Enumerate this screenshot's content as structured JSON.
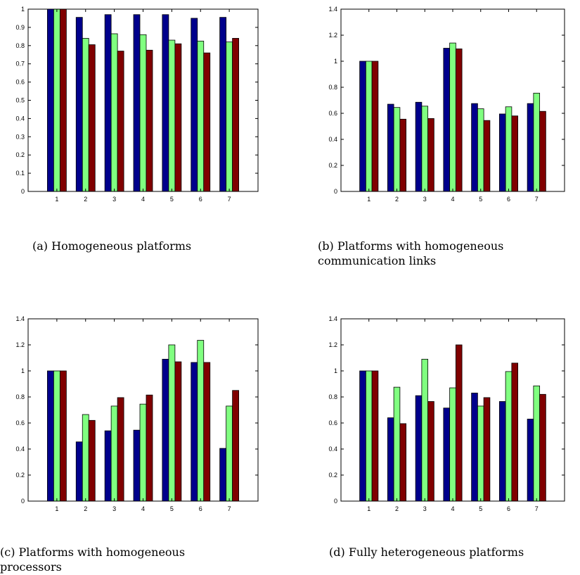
{
  "colors": {
    "series_1": "#00008c",
    "series_2": "#80ff80",
    "series_3": "#800000"
  },
  "chart_data": [
    {
      "type": "bar",
      "caption": "(a) Homogeneous platforms",
      "categories": [
        "1",
        "2",
        "3",
        "4",
        "5",
        "6",
        "7"
      ],
      "ylim": [
        0,
        1
      ],
      "yticks": [
        "0",
        "0.1",
        "0.2",
        "0.3",
        "0.4",
        "0.5",
        "0.6",
        "0.7",
        "0.8",
        "0.9",
        "1"
      ],
      "ytick_values": [
        0,
        0.1,
        0.2,
        0.3,
        0.4,
        0.5,
        0.6,
        0.7,
        0.8,
        0.9,
        1
      ],
      "series": [
        {
          "values": [
            1.0,
            0.955,
            0.97,
            0.97,
            0.97,
            0.95,
            0.955
          ]
        },
        {
          "values": [
            1.0,
            0.84,
            0.865,
            0.86,
            0.83,
            0.825,
            0.82
          ]
        },
        {
          "values": [
            1.0,
            0.805,
            0.77,
            0.775,
            0.81,
            0.76,
            0.84
          ]
        }
      ]
    },
    {
      "type": "bar",
      "caption": "(b) Platforms with homogeneous communication links",
      "categories": [
        "1",
        "2",
        "3",
        "4",
        "5",
        "6",
        "7"
      ],
      "ylim": [
        0,
        1.4
      ],
      "yticks": [
        "0",
        "0.2",
        "0.4",
        "0.6",
        "0.8",
        "1",
        "1.2",
        "1.4"
      ],
      "ytick_values": [
        0,
        0.2,
        0.4,
        0.6,
        0.8,
        1,
        1.2,
        1.4
      ],
      "series": [
        {
          "values": [
            1.0,
            0.67,
            0.685,
            1.1,
            0.675,
            0.595,
            0.675
          ]
        },
        {
          "values": [
            1.0,
            0.645,
            0.655,
            1.14,
            0.635,
            0.65,
            0.755
          ]
        },
        {
          "values": [
            1.0,
            0.555,
            0.56,
            1.095,
            0.545,
            0.58,
            0.615
          ]
        }
      ]
    },
    {
      "type": "bar",
      "caption": "(c) Platforms with homogeneous processors",
      "categories": [
        "1",
        "2",
        "3",
        "4",
        "5",
        "6",
        "7"
      ],
      "ylim": [
        0,
        1.4
      ],
      "yticks": [
        "0",
        "0.2",
        "0.4",
        "0.6",
        "0.8",
        "1",
        "1.2",
        "1.4"
      ],
      "ytick_values": [
        0,
        0.2,
        0.4,
        0.6,
        0.8,
        1,
        1.2,
        1.4
      ],
      "series": [
        {
          "values": [
            1.0,
            0.455,
            0.54,
            0.545,
            1.09,
            1.065,
            0.405
          ]
        },
        {
          "values": [
            1.0,
            0.665,
            0.73,
            0.745,
            1.2,
            1.235,
            0.73
          ]
        },
        {
          "values": [
            1.0,
            0.62,
            0.795,
            0.815,
            1.07,
            1.065,
            0.85
          ]
        }
      ]
    },
    {
      "type": "bar",
      "caption": "(d) Fully heterogeneous platforms",
      "categories": [
        "1",
        "2",
        "3",
        "4",
        "5",
        "6",
        "7"
      ],
      "ylim": [
        0,
        1.4
      ],
      "yticks": [
        "0",
        "0.2",
        "0.4",
        "0.6",
        "0.8",
        "1",
        "1.2",
        "1.4"
      ],
      "ytick_values": [
        0,
        0.2,
        0.4,
        0.6,
        0.8,
        1,
        1.2,
        1.4
      ],
      "series": [
        {
          "values": [
            1.0,
            0.64,
            0.81,
            0.715,
            0.83,
            0.765,
            0.63
          ]
        },
        {
          "values": [
            1.0,
            0.875,
            1.09,
            0.87,
            0.73,
            0.995,
            0.885
          ]
        },
        {
          "values": [
            1.0,
            0.595,
            0.765,
            1.2,
            0.795,
            1.06,
            0.82
          ]
        }
      ]
    }
  ]
}
